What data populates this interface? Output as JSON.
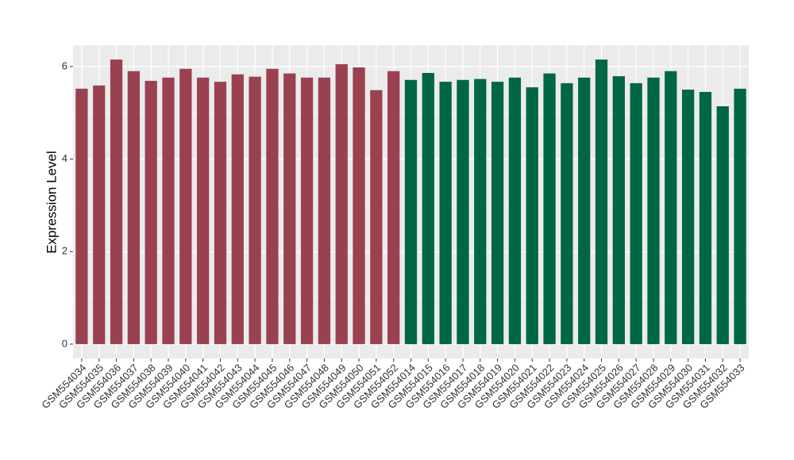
{
  "chart_data": {
    "type": "bar",
    "ylabel": "Expression Level",
    "categories": [
      "GSM554034",
      "GSM554035",
      "GSM554036",
      "GSM554037",
      "GSM554038",
      "GSM554039",
      "GSM554040",
      "GSM554041",
      "GSM554042",
      "GSM554043",
      "GSM554044",
      "GSM554045",
      "GSM554046",
      "GSM554047",
      "GSM554048",
      "GSM554049",
      "GSM554050",
      "GSM554051",
      "GSM554052",
      "GSM554014",
      "GSM554015",
      "GSM554016",
      "GSM554017",
      "GSM554018",
      "GSM554019",
      "GSM554020",
      "GSM554021",
      "GSM554022",
      "GSM554023",
      "GSM554024",
      "GSM554025",
      "GSM554026",
      "GSM554027",
      "GSM554028",
      "GSM554029",
      "GSM554030",
      "GSM554031",
      "GSM554032",
      "GSM554033"
    ],
    "values": [
      5.52,
      5.59,
      6.15,
      5.9,
      5.69,
      5.76,
      5.95,
      5.76,
      5.67,
      5.83,
      5.78,
      5.95,
      5.85,
      5.76,
      5.76,
      6.05,
      5.98,
      5.49,
      5.9,
      5.71,
      5.86,
      5.67,
      5.71,
      5.73,
      5.67,
      5.76,
      5.55,
      5.85,
      5.64,
      5.76,
      6.15,
      5.79,
      5.64,
      5.76,
      5.9,
      5.5,
      5.45,
      5.14,
      5.52
    ],
    "colors": [
      "#9a4150",
      "#9a4150",
      "#9a4150",
      "#9a4150",
      "#9a4150",
      "#9a4150",
      "#9a4150",
      "#9a4150",
      "#9a4150",
      "#9a4150",
      "#9a4150",
      "#9a4150",
      "#9a4150",
      "#9a4150",
      "#9a4150",
      "#9a4150",
      "#9a4150",
      "#9a4150",
      "#9a4150",
      "#006644",
      "#006644",
      "#006644",
      "#006644",
      "#006644",
      "#006644",
      "#006644",
      "#006644",
      "#006644",
      "#006644",
      "#006644",
      "#006644",
      "#006644",
      "#006644",
      "#006644",
      "#006644",
      "#006644",
      "#006644",
      "#006644",
      "#006644"
    ],
    "ylim": [
      -0.31,
      6.46
    ],
    "yticks": [
      0,
      2,
      4,
      6
    ],
    "grid": true
  }
}
